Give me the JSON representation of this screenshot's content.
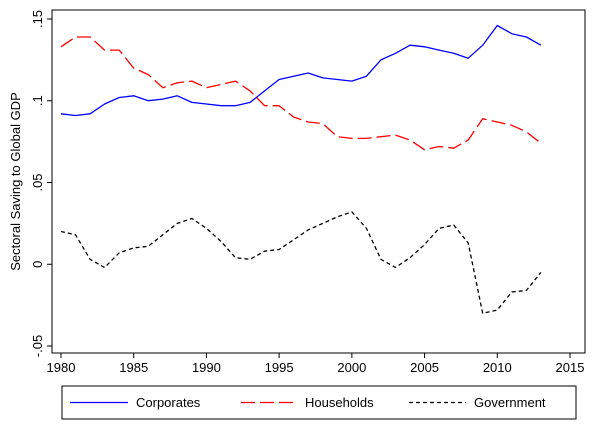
{
  "chart_data": {
    "type": "line",
    "title": "",
    "xlabel": "",
    "ylabel": "Sectoral Saving to Global GDP",
    "xlim": [
      1980,
      2015
    ],
    "ylim": [
      -0.05,
      0.15
    ],
    "xticks": [
      1980,
      1985,
      1990,
      1995,
      2000,
      2005,
      2010,
      2015
    ],
    "xtick_labels": [
      "1980",
      "1985",
      "1990",
      "1995",
      "2000",
      "2005",
      "2010",
      "2015"
    ],
    "yticks": [
      -0.05,
      0,
      0.05,
      0.1,
      0.15
    ],
    "ytick_labels": [
      "-.05",
      "0",
      ".05",
      ".1",
      ".15"
    ],
    "grid": false,
    "legend_position": "bottom",
    "x": [
      1980,
      1981,
      1982,
      1983,
      1984,
      1985,
      1986,
      1987,
      1988,
      1989,
      1990,
      1991,
      1992,
      1993,
      1994,
      1995,
      1996,
      1997,
      1998,
      1999,
      2000,
      2001,
      2002,
      2003,
      2004,
      2005,
      2006,
      2007,
      2008,
      2009,
      2010,
      2011,
      2012,
      2013
    ],
    "series": [
      {
        "name": "Corporates",
        "color": "#0000ff",
        "dash": "solid",
        "values": [
          0.092,
          0.091,
          0.092,
          0.098,
          0.102,
          0.103,
          0.1,
          0.101,
          0.103,
          0.099,
          0.098,
          0.097,
          0.097,
          0.099,
          0.106,
          0.113,
          0.115,
          0.117,
          0.114,
          0.113,
          0.112,
          0.115,
          0.125,
          0.129,
          0.134,
          0.133,
          0.131,
          0.129,
          0.126,
          0.134,
          0.146,
          0.141,
          0.139,
          0.134
        ]
      },
      {
        "name": "Households",
        "color": "#ff0000",
        "dash": "longdash",
        "values": [
          0.133,
          0.139,
          0.139,
          0.131,
          0.131,
          0.12,
          0.116,
          0.108,
          0.111,
          0.112,
          0.108,
          0.11,
          0.112,
          0.106,
          0.097,
          0.097,
          0.09,
          0.087,
          0.086,
          0.078,
          0.077,
          0.077,
          0.078,
          0.079,
          0.076,
          0.07,
          0.072,
          0.071,
          0.076,
          0.089,
          0.087,
          0.085,
          0.081,
          0.074
        ]
      },
      {
        "name": "Government",
        "color": "#000000",
        "dash": "shortdash",
        "values": [
          0.02,
          0.018,
          0.003,
          -0.002,
          0.007,
          0.01,
          0.011,
          0.018,
          0.025,
          0.028,
          0.022,
          0.014,
          0.004,
          0.003,
          0.008,
          0.009,
          0.015,
          0.021,
          0.025,
          0.029,
          0.032,
          0.022,
          0.003,
          -0.002,
          0.004,
          0.012,
          0.022,
          0.024,
          0.013,
          -0.03,
          -0.028,
          -0.017,
          -0.016,
          -0.005
        ]
      }
    ]
  }
}
